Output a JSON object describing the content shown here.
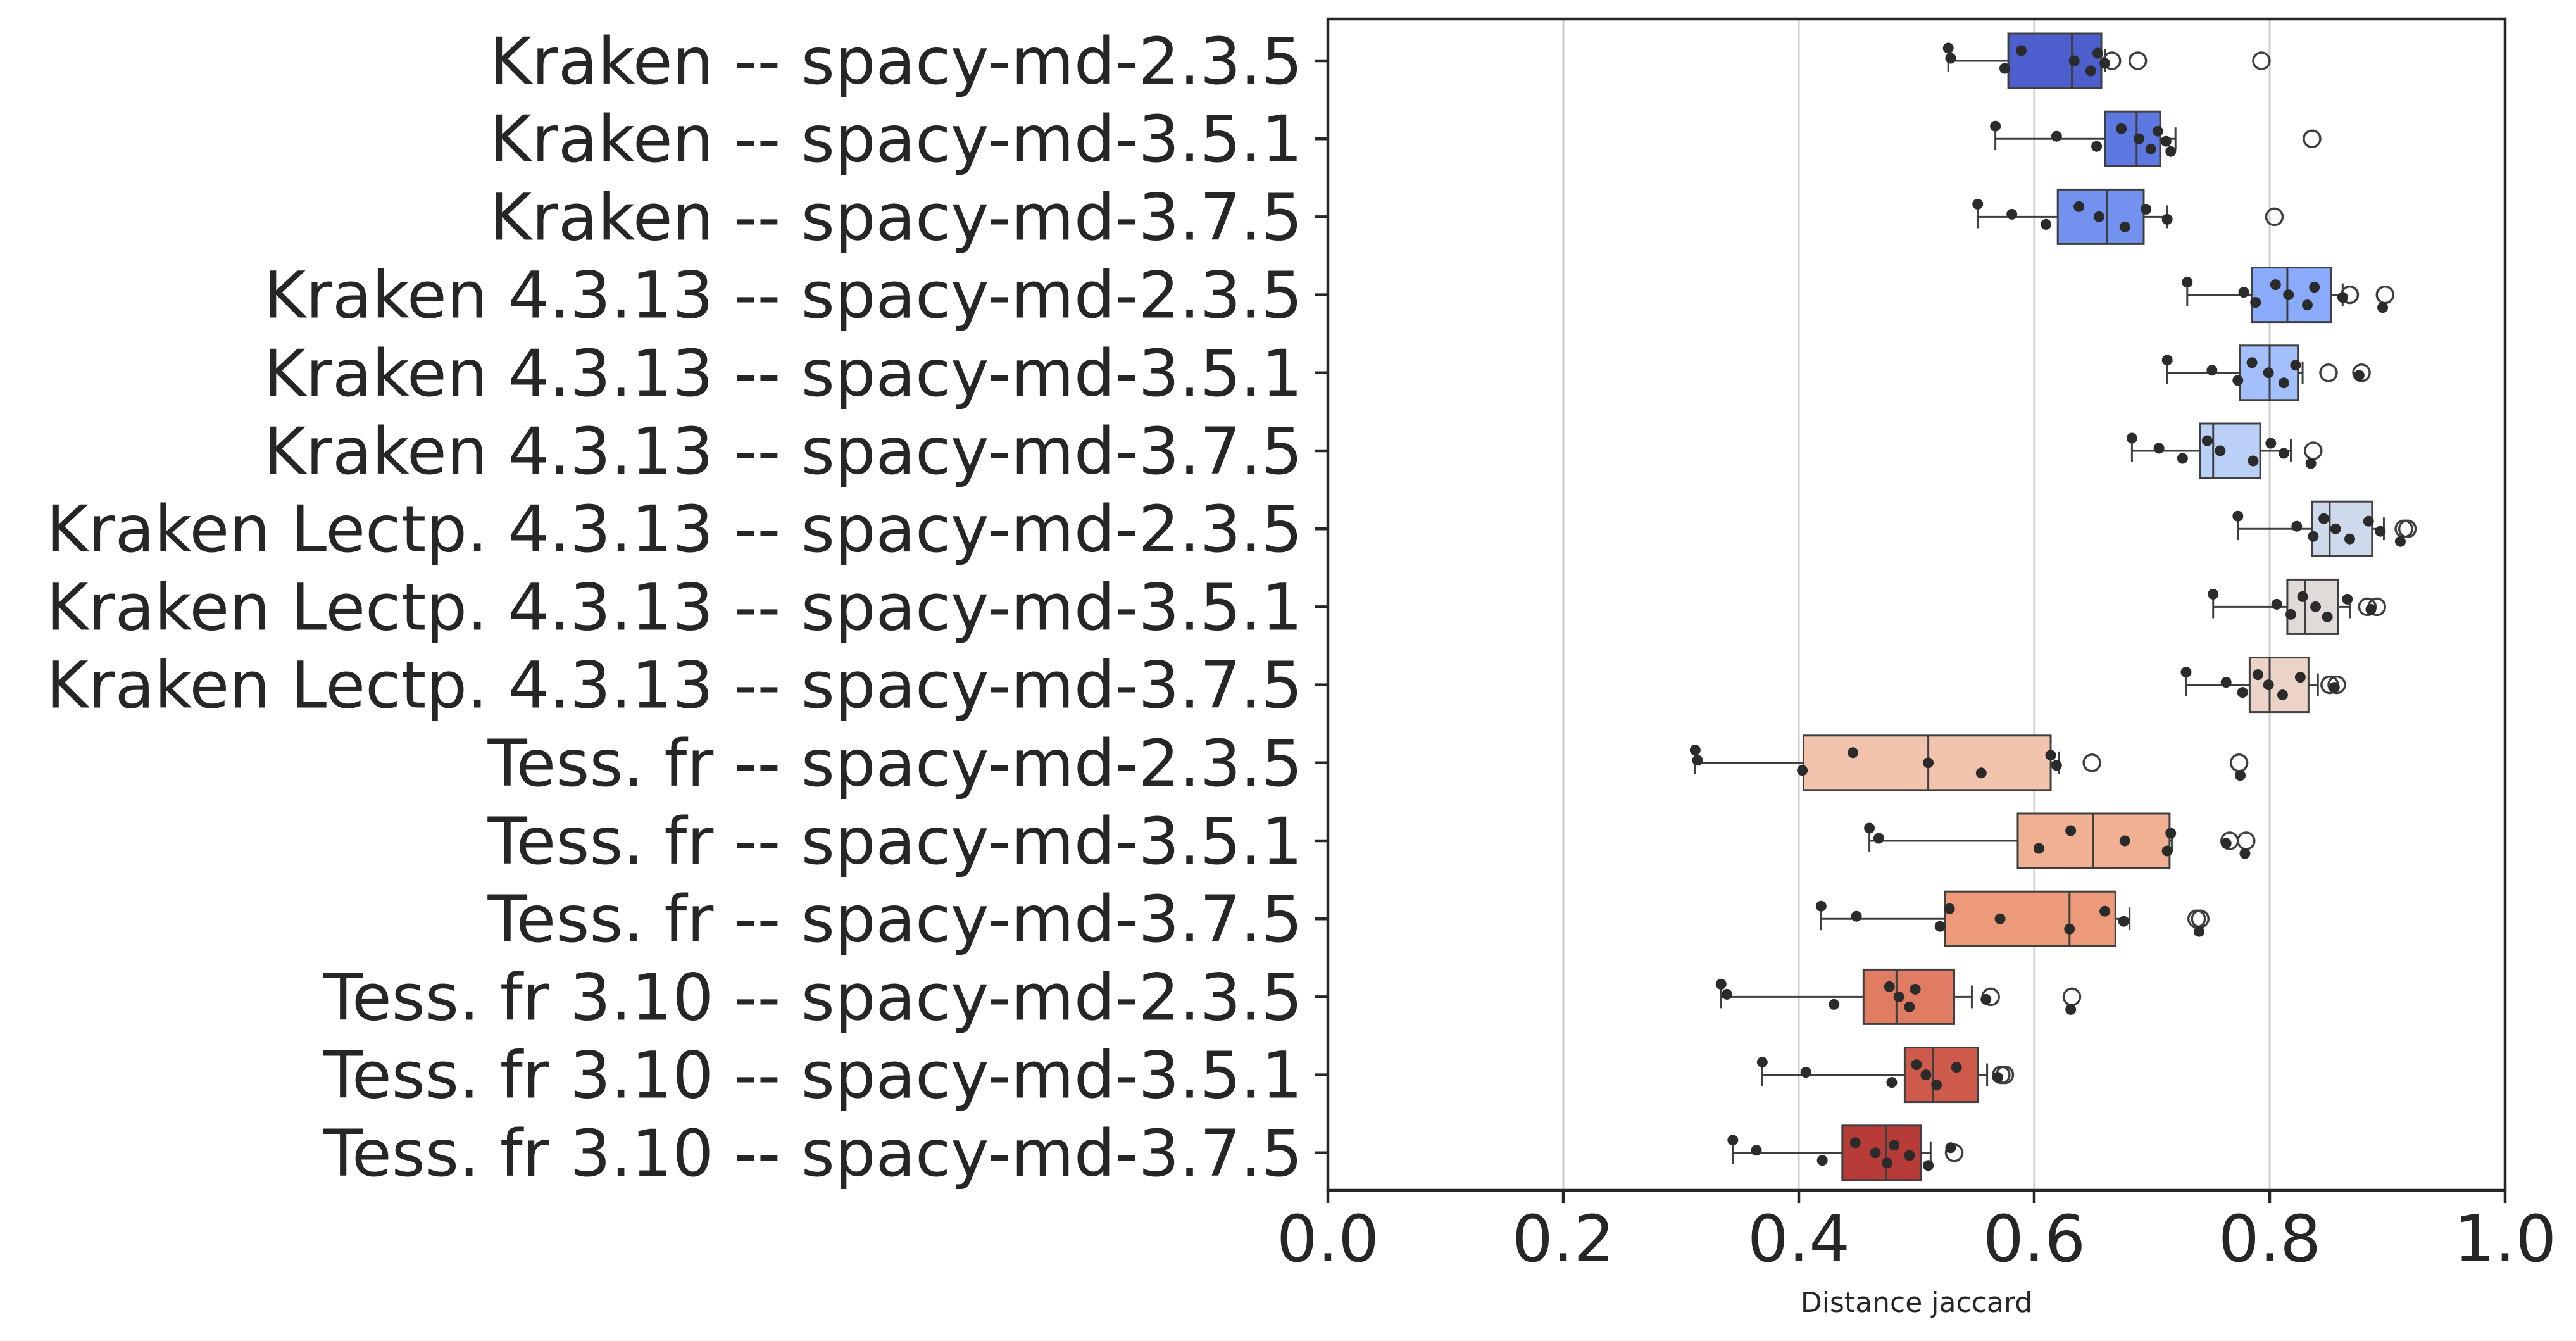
{
  "chart_data": {
    "type": "box",
    "orientation": "horizontal",
    "xlabel": "Distance jaccard",
    "xlim": [
      0.0,
      1.0
    ],
    "xticks": [
      "0.0",
      "0.2",
      "0.4",
      "0.6",
      "0.8",
      "1.0"
    ],
    "xtick_values": [
      0.0,
      0.2,
      0.4,
      0.6,
      0.8,
      1.0
    ],
    "grid": "vertical",
    "categories": [
      "Kraken -- spacy-md-2.3.5",
      "Kraken -- spacy-md-3.5.1",
      "Kraken -- spacy-md-3.7.5",
      "Kraken 4.3.13 -- spacy-md-2.3.5",
      "Kraken 4.3.13 -- spacy-md-3.5.1",
      "Kraken 4.3.13 -- spacy-md-3.7.5",
      "Kraken Lectp. 4.3.13 -- spacy-md-2.3.5",
      "Kraken Lectp. 4.3.13 -- spacy-md-3.5.1",
      "Kraken Lectp. 4.3.13 -- spacy-md-3.7.5",
      "Tess. fr -- spacy-md-2.3.5",
      "Tess. fr -- spacy-md-3.5.1",
      "Tess. fr -- spacy-md-3.7.5",
      "Tess. fr 3.10 -- spacy-md-2.3.5",
      "Tess. fr 3.10 -- spacy-md-3.5.1",
      "Tess. fr 3.10 -- spacy-md-3.7.5"
    ],
    "colors": [
      "#4c5fcd",
      "#5d78e1",
      "#7392f0",
      "#8aabfb",
      "#a3c0fd",
      "#bbd0f7",
      "#cfd9ec",
      "#e0dbd9",
      "#ebd3c7",
      "#f2c3ad",
      "#f1b092",
      "#ec9a79",
      "#e07c61",
      "#cd5a4b",
      "#b73b36"
    ],
    "boxes": [
      {
        "whislo": 0.527,
        "q1": 0.578,
        "med": 0.632,
        "q3": 0.657,
        "whishi": 0.66,
        "fliers": [
          0.666,
          0.688,
          0.793
        ],
        "points": [
          0.527,
          0.529,
          0.575,
          0.589,
          0.634,
          0.648,
          0.654,
          0.66
        ]
      },
      {
        "whislo": 0.567,
        "q1": 0.66,
        "med": 0.687,
        "q3": 0.707,
        "whishi": 0.72,
        "fliers": [
          0.836
        ],
        "points": [
          0.567,
          0.619,
          0.653,
          0.674,
          0.689,
          0.699,
          0.705,
          0.712,
          0.716
        ]
      },
      {
        "whislo": 0.552,
        "q1": 0.62,
        "med": 0.662,
        "q3": 0.693,
        "whishi": 0.713,
        "fliers": [
          0.804
        ],
        "points": [
          0.552,
          0.581,
          0.61,
          0.638,
          0.655,
          0.677,
          0.695,
          0.713
        ]
      },
      {
        "whislo": 0.73,
        "q1": 0.785,
        "med": 0.815,
        "q3": 0.852,
        "whishi": 0.862,
        "fliers": [
          0.868,
          0.898
        ],
        "points": [
          0.73,
          0.778,
          0.788,
          0.805,
          0.816,
          0.832,
          0.838,
          0.862,
          0.896
        ]
      },
      {
        "whislo": 0.713,
        "q1": 0.775,
        "med": 0.8,
        "q3": 0.824,
        "whishi": 0.828,
        "fliers": [
          0.85,
          0.878
        ],
        "points": [
          0.713,
          0.751,
          0.773,
          0.785,
          0.799,
          0.812,
          0.822,
          0.876
        ]
      },
      {
        "whislo": 0.683,
        "q1": 0.741,
        "med": 0.752,
        "q3": 0.792,
        "whishi": 0.818,
        "fliers": [
          0.837
        ],
        "points": [
          0.683,
          0.706,
          0.726,
          0.747,
          0.758,
          0.786,
          0.801,
          0.812,
          0.835
        ]
      },
      {
        "whislo": 0.773,
        "q1": 0.836,
        "med": 0.851,
        "q3": 0.887,
        "whishi": 0.897,
        "fliers": [
          0.914,
          0.917
        ],
        "points": [
          0.773,
          0.823,
          0.837,
          0.846,
          0.856,
          0.868,
          0.884,
          0.894,
          0.911
        ]
      },
      {
        "whislo": 0.752,
        "q1": 0.815,
        "med": 0.83,
        "q3": 0.858,
        "whishi": 0.868,
        "fliers": [
          0.883,
          0.891
        ],
        "points": [
          0.752,
          0.806,
          0.818,
          0.828,
          0.839,
          0.849,
          0.866,
          0.886
        ]
      },
      {
        "whislo": 0.729,
        "q1": 0.783,
        "med": 0.8,
        "q3": 0.833,
        "whishi": 0.841,
        "fliers": [
          0.851,
          0.857
        ],
        "points": [
          0.729,
          0.763,
          0.777,
          0.79,
          0.799,
          0.811,
          0.826,
          0.855
        ]
      },
      {
        "whislo": 0.312,
        "q1": 0.404,
        "med": 0.51,
        "q3": 0.614,
        "whishi": 0.621,
        "fliers": [
          0.649,
          0.774
        ],
        "points": [
          0.312,
          0.314,
          0.403,
          0.446,
          0.51,
          0.555,
          0.614,
          0.619,
          0.775
        ]
      },
      {
        "whislo": 0.46,
        "q1": 0.586,
        "med": 0.65,
        "q3": 0.715,
        "whishi": 0.717,
        "fliers": [
          0.766,
          0.78
        ],
        "points": [
          0.46,
          0.468,
          0.604,
          0.631,
          0.677,
          0.713,
          0.716,
          0.763,
          0.779
        ]
      },
      {
        "whislo": 0.419,
        "q1": 0.524,
        "med": 0.63,
        "q3": 0.669,
        "whishi": 0.681,
        "fliers": [
          0.738,
          0.741
        ],
        "points": [
          0.419,
          0.449,
          0.52,
          0.528,
          0.571,
          0.63,
          0.66,
          0.676,
          0.74
        ]
      },
      {
        "whislo": 0.334,
        "q1": 0.455,
        "med": 0.483,
        "q3": 0.532,
        "whishi": 0.547,
        "fliers": [
          0.563,
          0.632
        ],
        "points": [
          0.334,
          0.339,
          0.43,
          0.477,
          0.485,
          0.494,
          0.499,
          0.559,
          0.631
        ]
      },
      {
        "whislo": 0.369,
        "q1": 0.49,
        "med": 0.514,
        "q3": 0.552,
        "whishi": 0.56,
        "fliers": [
          0.572,
          0.575
        ],
        "points": [
          0.369,
          0.406,
          0.479,
          0.5,
          0.508,
          0.517,
          0.534,
          0.569
        ]
      },
      {
        "whislo": 0.344,
        "q1": 0.437,
        "med": 0.474,
        "q3": 0.504,
        "whishi": 0.512,
        "fliers": [
          0.532
        ],
        "points": [
          0.344,
          0.364,
          0.42,
          0.448,
          0.465,
          0.475,
          0.481,
          0.494,
          0.51,
          0.529
        ]
      }
    ]
  }
}
